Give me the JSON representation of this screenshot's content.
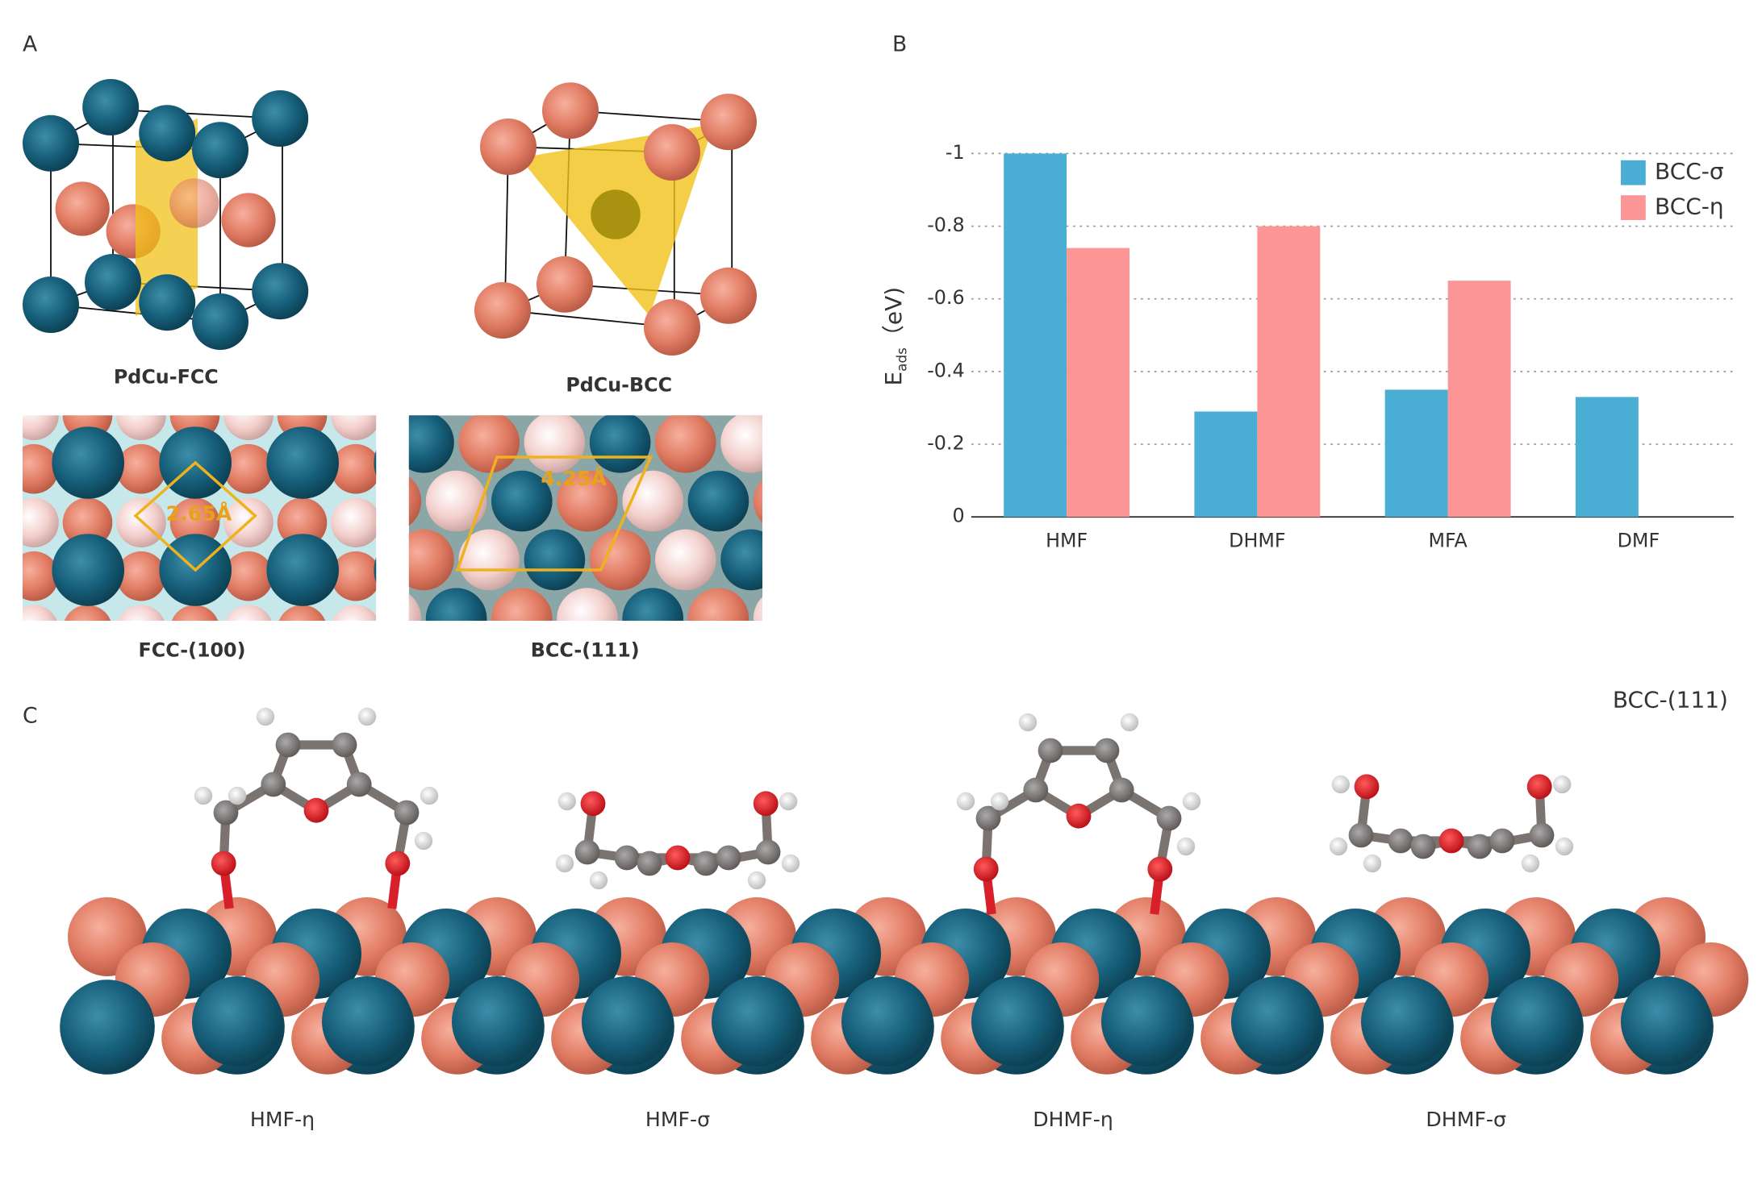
{
  "figure": {
    "panel_labels": [
      "A",
      "B",
      "C"
    ],
    "panel_a": {
      "captions": [
        "PdCu-FCC",
        "PdCu-BCC",
        "FCC-(100)",
        "BCC-(111)"
      ],
      "distances": [
        "2.65Å",
        "4.25Å"
      ]
    },
    "panel_c": {
      "surface": "BCC-(111)",
      "captions": [
        "HMF-η",
        "HMF-σ",
        "DHMF-η",
        "DHMF-σ"
      ]
    }
  },
  "chart_data": {
    "type": "bar",
    "ylabel": "E",
    "ylabel_sub": "ads",
    "ylabel_unit": "（eV)",
    "categories": [
      "HMF",
      "DHMF",
      "MFA",
      "DMF"
    ],
    "series": [
      {
        "name": "BCC-σ",
        "color": "#4aaed4",
        "values": [
          -1,
          -0.29,
          -0.35,
          -0.33
        ]
      },
      {
        "name": "BCC-η",
        "color": "#fc9696",
        "values": [
          -0.74,
          -0.8,
          -0.65,
          null
        ]
      }
    ],
    "ylim": [
      0,
      -1
    ],
    "yticks": [
      0,
      -0.2,
      -0.4,
      -0.6,
      -0.8,
      -1
    ],
    "grid": true,
    "legend": "upper right"
  }
}
